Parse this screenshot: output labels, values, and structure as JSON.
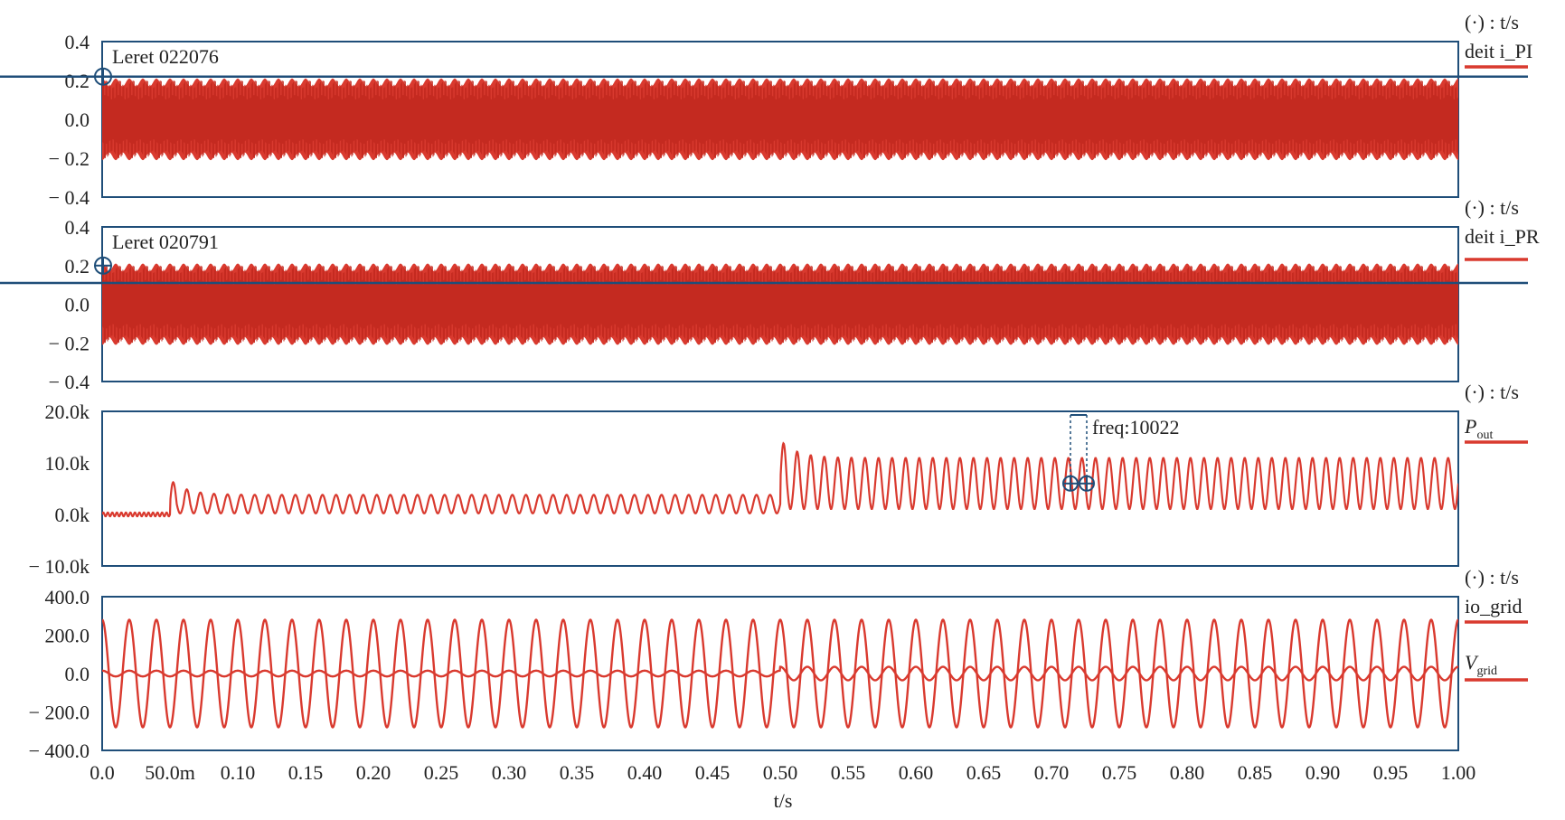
{
  "chart_data": [
    {
      "type": "line",
      "panel": "i_PI",
      "legend_header": "(·) : t/s",
      "legend_label": "deit i_PI",
      "annotation": "Leret 022076",
      "ylim": [
        -0.4,
        0.4
      ],
      "yticks": [
        "0.4",
        "0.2",
        "0.0",
        "− 0.2",
        "− 0.4"
      ],
      "ytick_values": [
        0.4,
        0.2,
        0.0,
        -0.2,
        -0.4
      ],
      "cursor_y": 0.22,
      "signal": {
        "amplitude_outer": 0.21,
        "amplitude_inner": 0.17,
        "cycles": 100
      },
      "color": "#d93a2f"
    },
    {
      "type": "line",
      "panel": "i_PR",
      "legend_header": "(·) : t/s",
      "legend_label": "deit i_PR",
      "annotation": "Leret 020791",
      "ylim": [
        -0.4,
        0.4
      ],
      "yticks": [
        "0.4",
        "0.2",
        "0.0",
        "− 0.2",
        "− 0.4"
      ],
      "ytick_values": [
        0.4,
        0.2,
        0.0,
        -0.2,
        -0.4
      ],
      "cursor_y": 0.11,
      "signal": {
        "amplitude_outer": 0.21,
        "amplitude_inner": 0.17,
        "cycles": 100
      },
      "color": "#d93a2f"
    },
    {
      "type": "line",
      "panel": "P_out",
      "legend_header": "(·) : t/s",
      "legend_label": "P",
      "legend_sub": "out",
      "annotation": "freq:10022",
      "ylim": [
        -10000,
        20000
      ],
      "yticks": [
        "20.0k",
        "10.0k",
        "0.0k",
        "− 10.0k"
      ],
      "ytick_values": [
        20000,
        10000,
        0,
        -10000
      ],
      "segments": [
        {
          "t_start": 0.0,
          "t_end": 0.05,
          "mean": 0,
          "amplitude": 600
        },
        {
          "t_start": 0.05,
          "t_end": 0.5,
          "mean": 2000,
          "amplitude": 2000,
          "transient_peak": 7000
        },
        {
          "t_start": 0.5,
          "t_end": 1.0,
          "mean": 6000,
          "amplitude": 5500,
          "transient_peak": 15000
        }
      ],
      "cycles_per_second": 100,
      "color": "#d93a2f"
    },
    {
      "type": "line",
      "panel": "grid",
      "legend_header": "(·) : t/s",
      "legend_label": "io_grid",
      "legend_label_2": "V",
      "legend_sub_2": "grid",
      "ylim": [
        -400,
        400
      ],
      "yticks": [
        "400.0",
        "200.0",
        "0.0",
        "− 200.0",
        "− 400.0"
      ],
      "ytick_values": [
        400,
        200,
        0,
        -200,
        -400
      ],
      "series": [
        {
          "name": "V_grid",
          "amplitude": 280,
          "cycles": 50
        },
        {
          "name": "io_grid",
          "amplitude_before": 15,
          "amplitude_after": 35,
          "cycles": 50
        }
      ],
      "color": "#d93a2f"
    }
  ],
  "xaxis": {
    "label": "t/s",
    "xlim": [
      0.0,
      1.0
    ],
    "ticks": [
      "0.0",
      "50.0m",
      "0.10",
      "0.15",
      "0.20",
      "0.25",
      "0.30",
      "0.35",
      "0.40",
      "0.45",
      "0.50",
      "0.55",
      "0.60",
      "0.65",
      "0.70",
      "0.75",
      "0.80",
      "0.85",
      "0.90",
      "0.95",
      "1.00"
    ],
    "tick_values": [
      0.0,
      0.05,
      0.1,
      0.15,
      0.2,
      0.25,
      0.3,
      0.35,
      0.4,
      0.45,
      0.5,
      0.55,
      0.6,
      0.65,
      0.7,
      0.75,
      0.8,
      0.85,
      0.9,
      0.95,
      1.0
    ]
  },
  "colors": {
    "trace": "#d93a2f",
    "frame": "#1f4e79",
    "cursor": "#1f4e79"
  }
}
